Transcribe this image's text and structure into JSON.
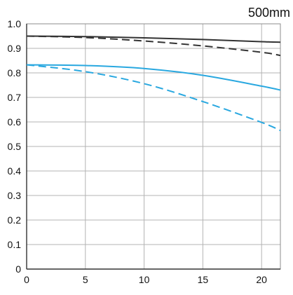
{
  "chart_data": {
    "type": "line",
    "title": "500mm",
    "xlabel": "",
    "ylabel": "",
    "xlim": [
      0,
      21.6
    ],
    "ylim": [
      0,
      1.0
    ],
    "x_ticks": [
      0,
      5,
      10,
      15,
      20
    ],
    "y_ticks": [
      0,
      0.1,
      0.2,
      0.3,
      0.4,
      0.5,
      0.6,
      0.7,
      0.8,
      0.9,
      1.0
    ],
    "y_tick_labels": [
      "0",
      "0.1",
      "0.2",
      "0.3",
      "0.4",
      "0.5",
      "0.6",
      "0.7",
      "0.8",
      "0.9",
      "1.0"
    ],
    "x_tick_labels": [
      "0",
      "5",
      "10",
      "15",
      "20"
    ],
    "grid": true,
    "legend": "none",
    "series": [
      {
        "color": "#333333",
        "style": "solid",
        "x": [
          0,
          5,
          10,
          15,
          20,
          21.6
        ],
        "y": [
          0.95,
          0.948,
          0.943,
          0.936,
          0.927,
          0.925
        ]
      },
      {
        "color": "#333333",
        "style": "dashed",
        "x": [
          0,
          5,
          10,
          15,
          20,
          21.6
        ],
        "y": [
          0.95,
          0.944,
          0.93,
          0.91,
          0.884,
          0.871
        ]
      },
      {
        "color": "#29a8e0",
        "style": "solid",
        "x": [
          0,
          5,
          10,
          15,
          20,
          21.6
        ],
        "y": [
          0.833,
          0.83,
          0.818,
          0.79,
          0.746,
          0.73
        ]
      },
      {
        "color": "#29a8e0",
        "style": "dashed",
        "x": [
          0,
          5,
          10,
          15,
          20,
          21.6
        ],
        "y": [
          0.833,
          0.805,
          0.756,
          0.683,
          0.598,
          0.565
        ]
      }
    ]
  }
}
